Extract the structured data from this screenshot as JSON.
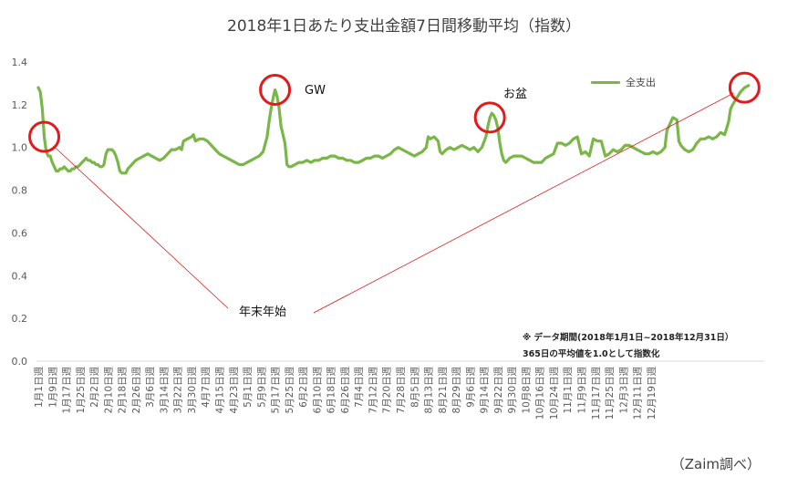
{
  "chart_data": {
    "type": "line",
    "title": "2018年1日あたり支出金額7日間移動平均（指数）",
    "ylim": [
      0,
      1.4
    ],
    "yticks": [
      "0.0",
      "0.2",
      "0.4",
      "0.6",
      "0.8",
      "1.0",
      "1.2",
      "1.4"
    ],
    "grid": false,
    "legend_position": "top-right",
    "series": [
      {
        "name": "全支出",
        "color": "#7ab648",
        "values": [
          [
            1,
            1.28
          ],
          [
            2,
            1.26
          ],
          [
            3,
            1.18
          ],
          [
            4,
            1.05
          ],
          [
            5,
            0.98
          ],
          [
            6,
            0.96
          ],
          [
            7,
            0.96
          ],
          [
            8,
            0.93
          ],
          [
            9,
            0.91
          ],
          [
            10,
            0.89
          ],
          [
            11,
            0.89
          ],
          [
            12,
            0.9
          ],
          [
            13,
            0.9
          ],
          [
            14,
            0.91
          ],
          [
            15,
            0.9
          ],
          [
            16,
            0.89
          ],
          [
            17,
            0.89
          ],
          [
            18,
            0.9
          ],
          [
            19,
            0.9
          ],
          [
            20,
            0.91
          ],
          [
            21,
            0.91
          ],
          [
            22,
            0.92
          ],
          [
            23,
            0.93
          ],
          [
            24,
            0.94
          ],
          [
            25,
            0.95
          ],
          [
            26,
            0.94
          ],
          [
            27,
            0.94
          ],
          [
            28,
            0.93
          ],
          [
            29,
            0.93
          ],
          [
            30,
            0.92
          ],
          [
            31,
            0.92
          ],
          [
            32,
            0.91
          ],
          [
            33,
            0.91
          ],
          [
            34,
            0.92
          ],
          [
            35,
            0.97
          ],
          [
            36,
            0.99
          ],
          [
            37,
            0.99
          ],
          [
            38,
            0.99
          ],
          [
            39,
            0.98
          ],
          [
            40,
            0.96
          ],
          [
            41,
            0.93
          ],
          [
            42,
            0.89
          ],
          [
            43,
            0.88
          ],
          [
            44,
            0.88
          ],
          [
            45,
            0.88
          ],
          [
            46,
            0.9
          ],
          [
            47,
            0.91
          ],
          [
            48,
            0.92
          ],
          [
            49,
            0.93
          ],
          [
            50,
            0.94
          ],
          [
            52,
            0.95
          ],
          [
            54,
            0.96
          ],
          [
            56,
            0.97
          ],
          [
            58,
            0.96
          ],
          [
            60,
            0.95
          ],
          [
            62,
            0.94
          ],
          [
            64,
            0.95
          ],
          [
            66,
            0.97
          ],
          [
            68,
            0.99
          ],
          [
            70,
            0.99
          ],
          [
            72,
            1.0
          ],
          [
            73,
            0.99
          ],
          [
            74,
            1.03
          ],
          [
            76,
            1.04
          ],
          [
            78,
            1.05
          ],
          [
            79,
            1.06
          ],
          [
            80,
            1.03
          ],
          [
            82,
            1.04
          ],
          [
            84,
            1.04
          ],
          [
            86,
            1.03
          ],
          [
            88,
            1.01
          ],
          [
            90,
            0.99
          ],
          [
            92,
            0.97
          ],
          [
            94,
            0.96
          ],
          [
            96,
            0.95
          ],
          [
            98,
            0.94
          ],
          [
            100,
            0.93
          ],
          [
            102,
            0.92
          ],
          [
            104,
            0.92
          ],
          [
            106,
            0.93
          ],
          [
            108,
            0.94
          ],
          [
            110,
            0.95
          ],
          [
            112,
            0.96
          ],
          [
            114,
            0.98
          ],
          [
            116,
            1.05
          ],
          [
            117,
            1.12
          ],
          [
            118,
            1.18
          ],
          [
            119,
            1.23
          ],
          [
            120,
            1.27
          ],
          [
            121,
            1.24
          ],
          [
            122,
            1.19
          ],
          [
            123,
            1.1
          ],
          [
            124,
            1.06
          ],
          [
            125,
            1.02
          ],
          [
            126,
            0.92
          ],
          [
            127,
            0.91
          ],
          [
            128,
            0.91
          ],
          [
            130,
            0.92
          ],
          [
            132,
            0.93
          ],
          [
            134,
            0.93
          ],
          [
            136,
            0.94
          ],
          [
            138,
            0.93
          ],
          [
            140,
            0.94
          ],
          [
            142,
            0.94
          ],
          [
            144,
            0.95
          ],
          [
            146,
            0.95
          ],
          [
            148,
            0.96
          ],
          [
            150,
            0.96
          ],
          [
            152,
            0.95
          ],
          [
            154,
            0.95
          ],
          [
            156,
            0.94
          ],
          [
            158,
            0.94
          ],
          [
            160,
            0.93
          ],
          [
            162,
            0.93
          ],
          [
            164,
            0.94
          ],
          [
            166,
            0.95
          ],
          [
            168,
            0.95
          ],
          [
            170,
            0.96
          ],
          [
            172,
            0.96
          ],
          [
            174,
            0.95
          ],
          [
            176,
            0.96
          ],
          [
            178,
            0.97
          ],
          [
            180,
            0.99
          ],
          [
            182,
            1.0
          ],
          [
            184,
            0.99
          ],
          [
            186,
            0.98
          ],
          [
            188,
            0.97
          ],
          [
            190,
            0.96
          ],
          [
            192,
            0.97
          ],
          [
            194,
            0.98
          ],
          [
            196,
            1.0
          ],
          [
            197,
            1.05
          ],
          [
            198,
            1.04
          ],
          [
            200,
            1.05
          ],
          [
            202,
            1.03
          ],
          [
            203,
            0.98
          ],
          [
            204,
            0.97
          ],
          [
            206,
            0.99
          ],
          [
            208,
            1.0
          ],
          [
            210,
            0.99
          ],
          [
            212,
            1.0
          ],
          [
            214,
            1.01
          ],
          [
            216,
            1.0
          ],
          [
            218,
            0.99
          ],
          [
            220,
            1.0
          ],
          [
            222,
            0.98
          ],
          [
            224,
            1.0
          ],
          [
            226,
            1.05
          ],
          [
            227,
            1.1
          ],
          [
            228,
            1.14
          ],
          [
            229,
            1.16
          ],
          [
            230,
            1.15
          ],
          [
            231,
            1.13
          ],
          [
            232,
            1.09
          ],
          [
            233,
            1.02
          ],
          [
            234,
            0.97
          ],
          [
            235,
            0.94
          ],
          [
            236,
            0.93
          ],
          [
            238,
            0.95
          ],
          [
            240,
            0.96
          ],
          [
            242,
            0.96
          ],
          [
            244,
            0.96
          ],
          [
            246,
            0.95
          ],
          [
            248,
            0.94
          ],
          [
            250,
            0.93
          ],
          [
            252,
            0.93
          ],
          [
            254,
            0.93
          ],
          [
            256,
            0.95
          ],
          [
            258,
            0.96
          ],
          [
            260,
            0.97
          ],
          [
            262,
            1.02
          ],
          [
            264,
            1.02
          ],
          [
            266,
            1.01
          ],
          [
            268,
            1.02
          ],
          [
            270,
            1.04
          ],
          [
            272,
            1.05
          ],
          [
            274,
            0.97
          ],
          [
            276,
            0.98
          ],
          [
            278,
            0.96
          ],
          [
            280,
            1.04
          ],
          [
            282,
            1.03
          ],
          [
            284,
            1.03
          ],
          [
            286,
            0.96
          ],
          [
            288,
            0.97
          ],
          [
            290,
            0.99
          ],
          [
            292,
            0.98
          ],
          [
            294,
            0.99
          ],
          [
            296,
            1.01
          ],
          [
            298,
            1.01
          ],
          [
            300,
            1.0
          ],
          [
            302,
            0.99
          ],
          [
            304,
            0.98
          ],
          [
            306,
            0.97
          ],
          [
            308,
            0.97
          ],
          [
            310,
            0.98
          ],
          [
            312,
            0.97
          ],
          [
            314,
            0.98
          ],
          [
            316,
            1.0
          ],
          [
            317,
            1.08
          ],
          [
            318,
            1.1
          ],
          [
            319,
            1.12
          ],
          [
            320,
            1.14
          ],
          [
            322,
            1.13
          ],
          [
            323,
            1.03
          ],
          [
            324,
            1.01
          ],
          [
            326,
            0.99
          ],
          [
            328,
            0.98
          ],
          [
            330,
            0.99
          ],
          [
            332,
            1.02
          ],
          [
            334,
            1.04
          ],
          [
            336,
            1.04
          ],
          [
            338,
            1.05
          ],
          [
            340,
            1.04
          ],
          [
            342,
            1.05
          ],
          [
            344,
            1.07
          ],
          [
            346,
            1.06
          ],
          [
            348,
            1.12
          ],
          [
            349,
            1.18
          ],
          [
            350,
            1.2
          ],
          [
            352,
            1.23
          ],
          [
            354,
            1.26
          ],
          [
            356,
            1.28
          ],
          [
            358,
            1.29
          ]
        ]
      }
    ],
    "x_range": [
      1,
      365
    ],
    "x_tick_labels": [
      {
        "day": 1,
        "label": "1月1日週"
      },
      {
        "day": 8,
        "label": "1月9日週"
      },
      {
        "day": 15,
        "label": "1月17日週"
      },
      {
        "day": 22,
        "label": "1月25日週"
      },
      {
        "day": 29,
        "label": "2月2日週"
      },
      {
        "day": 36,
        "label": "2月10日週"
      },
      {
        "day": 43,
        "label": "2月18日週"
      },
      {
        "day": 50,
        "label": "2月26日週"
      },
      {
        "day": 57,
        "label": "3月6日週"
      },
      {
        "day": 64,
        "label": "3月14日週"
      },
      {
        "day": 71,
        "label": "3月22日週"
      },
      {
        "day": 78,
        "label": "3月30日週"
      },
      {
        "day": 85,
        "label": "4月7日週"
      },
      {
        "day": 92,
        "label": "4月15日週"
      },
      {
        "day": 99,
        "label": "4月23日週"
      },
      {
        "day": 106,
        "label": "5月1日週"
      },
      {
        "day": 113,
        "label": "5月9日週"
      },
      {
        "day": 120,
        "label": "5月17日週"
      },
      {
        "day": 127,
        "label": "5月25日週"
      },
      {
        "day": 134,
        "label": "6月2日週"
      },
      {
        "day": 141,
        "label": "6月10日週"
      },
      {
        "day": 148,
        "label": "6月18日週"
      },
      {
        "day": 155,
        "label": "6月26日週"
      },
      {
        "day": 162,
        "label": "7月4日週"
      },
      {
        "day": 169,
        "label": "7月12日週"
      },
      {
        "day": 176,
        "label": "7月20日週"
      },
      {
        "day": 183,
        "label": "7月28日週"
      },
      {
        "day": 190,
        "label": "8月5日週"
      },
      {
        "day": 197,
        "label": "8月13日週"
      },
      {
        "day": 204,
        "label": "8月21日週"
      },
      {
        "day": 211,
        "label": "8月29日週"
      },
      {
        "day": 218,
        "label": "9月6日週"
      },
      {
        "day": 225,
        "label": "9月14日週"
      },
      {
        "day": 232,
        "label": "9月22日週"
      },
      {
        "day": 239,
        "label": "9月30日週"
      },
      {
        "day": 246,
        "label": "10月8日週"
      },
      {
        "day": 253,
        "label": "10月16日週"
      },
      {
        "day": 260,
        "label": "10月24日週"
      },
      {
        "day": 267,
        "label": "11月1日週"
      },
      {
        "day": 274,
        "label": "11月9日週"
      },
      {
        "day": 281,
        "label": "11月17日週"
      },
      {
        "day": 288,
        "label": "11月25日週"
      },
      {
        "day": 295,
        "label": "12月3日週"
      },
      {
        "day": 302,
        "label": "12月11日週"
      },
      {
        "day": 309,
        "label": "12月19日週"
      }
    ],
    "annotations": [
      {
        "text": "GW",
        "day": 120
      },
      {
        "text": "お盆",
        "day": 229
      },
      {
        "text": "年末年始",
        "day": 1
      }
    ],
    "notes": [
      "※ データ期間(2018年1月1日~2018年12月31日）",
      "365日の平均値を1.0として指数化"
    ]
  },
  "source": "（Zaim調べ）"
}
